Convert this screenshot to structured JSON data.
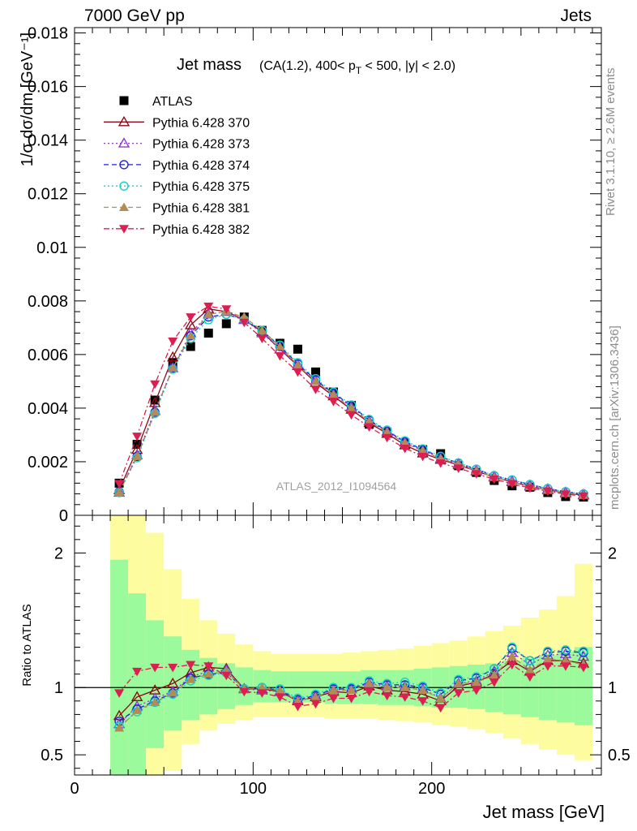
{
  "header": {
    "left": "7000 GeV pp",
    "right": "Jets"
  },
  "side_labels": {
    "rivet": "Rivet 3.1.10, ≥ 2.6M events",
    "mcplots": "mcplots.cern.ch [arXiv:1306.3436]"
  },
  "colors": {
    "ATLAS": "#000000",
    "p370": "#8b0a14",
    "p373": "#8c3ad6",
    "p374": "#2020d8",
    "p375": "#12d2c8",
    "p381": "#b48a55",
    "p382": "#dc1e50",
    "band_green": "#9bfa9b",
    "band_yellow": "#fdfda0",
    "watermark": "#a0a0a0"
  },
  "chart_data": [
    {
      "type": "scatter",
      "title_main": "Jet mass",
      "title_cuts": "(CA(1.2), 400< p_T < 500, |y| < 2.0)",
      "watermark": "ATLAS_2012_I1094564",
      "ylabel": "1/σ dσ/dm [GeV⁻¹]",
      "xlim": [
        0,
        295
      ],
      "ylim": [
        0,
        0.0182
      ],
      "ytick_values": [
        0,
        0.002,
        0.004,
        0.006,
        0.008,
        0.01,
        0.012,
        0.014,
        0.016,
        0.018
      ],
      "ytick_labels": [
        "0",
        "0.002",
        "0.004",
        "0.006",
        "0.008",
        "0.01",
        "0.012",
        "0.014",
        "0.016",
        "0.018"
      ],
      "legend_position": "top-left",
      "x": [
        25,
        35,
        45,
        55,
        65,
        75,
        85,
        95,
        105,
        115,
        125,
        135,
        145,
        155,
        165,
        175,
        185,
        195,
        205,
        215,
        225,
        235,
        245,
        255,
        265,
        275,
        285
      ],
      "series": [
        {
          "name": "ATLAS",
          "key": "ATLAS",
          "marker": "square",
          "line": "none",
          "values": [
            0.0012,
            0.00265,
            0.0043,
            0.0057,
            0.0063,
            0.0068,
            0.00715,
            0.0074,
            0.0069,
            0.00642,
            0.0062,
            0.00535,
            0.0046,
            0.0041,
            0.0034,
            0.0031,
            0.0027,
            0.00245,
            0.0023,
            0.00185,
            0.0016,
            0.0013,
            0.0011,
            0.00105,
            0.00085,
            0.0007,
            0.00068
          ]
        },
        {
          "name": "Pythia 6.428 370",
          "key": "p370",
          "marker": "tri-up-open",
          "line": "solid",
          "values": [
            0.00095,
            0.00245,
            0.0042,
            0.0059,
            0.0071,
            0.0077,
            0.0076,
            0.0073,
            0.00685,
            0.0062,
            0.00558,
            0.00495,
            0.00445,
            0.00395,
            0.00345,
            0.00305,
            0.00262,
            0.00232,
            0.00208,
            0.00188,
            0.00165,
            0.00142,
            0.00125,
            0.00108,
            0.00095,
            0.00083,
            0.00075
          ]
        },
        {
          "name": "Pythia 6.428 373",
          "key": "p373",
          "marker": "tri-up-open",
          "line": "dotted",
          "values": [
            0.00085,
            0.00225,
            0.0039,
            0.0055,
            0.0068,
            0.0075,
            0.0076,
            0.0073,
            0.0068,
            0.0062,
            0.00562,
            0.00502,
            0.00452,
            0.00405,
            0.00352,
            0.00312,
            0.00272,
            0.00242,
            0.00212,
            0.00192,
            0.00168,
            0.00145,
            0.00128,
            0.00112,
            0.00098,
            0.00086,
            0.00078
          ]
        },
        {
          "name": "Pythia 6.428 374",
          "key": "p374",
          "marker": "circle-open",
          "line": "dashed",
          "values": [
            0.00088,
            0.0022,
            0.00385,
            0.0055,
            0.0067,
            0.0074,
            0.0075,
            0.0073,
            0.0069,
            0.0063,
            0.00565,
            0.00505,
            0.00455,
            0.0041,
            0.00355,
            0.00315,
            0.00275,
            0.00245,
            0.00218,
            0.00195,
            0.00172,
            0.00148,
            0.00132,
            0.00115,
            0.001,
            0.00088,
            0.0008
          ]
        },
        {
          "name": "Pythia 6.428 375",
          "key": "p375",
          "marker": "circle-open",
          "line": "dotted",
          "values": [
            0.00085,
            0.00215,
            0.0038,
            0.00545,
            0.0066,
            0.0073,
            0.0075,
            0.0073,
            0.0069,
            0.00635,
            0.0057,
            0.0051,
            0.0046,
            0.00412,
            0.00358,
            0.00318,
            0.00278,
            0.00248,
            0.0022,
            0.00196,
            0.00172,
            0.00148,
            0.00132,
            0.00115,
            0.001,
            0.00088,
            0.0008
          ]
        },
        {
          "name": "Pythia 6.428 381",
          "key": "p381",
          "marker": "tri-up-filled",
          "line": "dashed",
          "values": [
            0.00085,
            0.0022,
            0.00385,
            0.0055,
            0.0067,
            0.0075,
            0.0076,
            0.0074,
            0.0069,
            0.0063,
            0.0056,
            0.005,
            0.0045,
            0.004,
            0.0035,
            0.0031,
            0.0027,
            0.0024,
            0.00212,
            0.0019,
            0.00166,
            0.00142,
            0.00125,
            0.00108,
            0.00094,
            0.00082,
            0.00075
          ]
        },
        {
          "name": "Pythia 6.428 382",
          "key": "p382",
          "marker": "tri-down-filled",
          "line": "dashdot",
          "values": [
            0.00118,
            0.00295,
            0.0049,
            0.0065,
            0.0074,
            0.0078,
            0.0077,
            0.0072,
            0.0066,
            0.00595,
            0.00535,
            0.0047,
            0.00425,
            0.00375,
            0.0033,
            0.0029,
            0.0025,
            0.0022,
            0.00195,
            0.00176,
            0.00155,
            0.00135,
            0.00118,
            0.00102,
            0.0009,
            0.00079,
            0.00072
          ]
        }
      ]
    },
    {
      "type": "line",
      "ylabel": "Ratio to ATLAS",
      "xlabel": "Jet mass [GeV]",
      "xlim": [
        0,
        295
      ],
      "ylim": [
        0.35,
        2.28
      ],
      "xtick_values": [
        0,
        100,
        200
      ],
      "xtick_labels": [
        "0",
        "100",
        "200"
      ],
      "ytick_values": [
        0.5,
        1,
        2
      ],
      "ytick_labels": [
        "0.5",
        "1",
        "2"
      ],
      "reference_line": 1,
      "x": [
        25,
        35,
        45,
        55,
        65,
        75,
        85,
        95,
        105,
        115,
        125,
        135,
        145,
        155,
        165,
        175,
        185,
        195,
        205,
        215,
        225,
        235,
        245,
        255,
        265,
        275,
        285
      ],
      "band_edges": [
        20,
        30,
        40,
        50,
        60,
        70,
        80,
        90,
        100,
        110,
        120,
        130,
        140,
        150,
        160,
        170,
        180,
        190,
        200,
        210,
        220,
        230,
        240,
        250,
        260,
        270,
        280,
        290
      ],
      "green_band": {
        "lo": [
          0.0,
          0.0,
          0.55,
          0.68,
          0.76,
          0.8,
          0.84,
          0.87,
          0.89,
          0.89,
          0.89,
          0.89,
          0.88,
          0.88,
          0.88,
          0.87,
          0.87,
          0.86,
          0.85,
          0.85,
          0.84,
          0.82,
          0.8,
          0.78,
          0.76,
          0.74,
          0.72
        ],
        "hi": [
          1.95,
          1.7,
          1.5,
          1.38,
          1.28,
          1.22,
          1.18,
          1.15,
          1.13,
          1.12,
          1.12,
          1.12,
          1.12,
          1.12,
          1.13,
          1.13,
          1.13,
          1.14,
          1.15,
          1.16,
          1.17,
          1.18,
          1.2,
          1.22,
          1.24,
          1.27,
          1.3
        ]
      },
      "yellow_band": {
        "lo": [
          0.0,
          0.0,
          0.0,
          0.38,
          0.58,
          0.68,
          0.73,
          0.76,
          0.78,
          0.78,
          0.78,
          0.78,
          0.77,
          0.77,
          0.77,
          0.76,
          0.75,
          0.74,
          0.72,
          0.71,
          0.69,
          0.66,
          0.62,
          0.58,
          0.54,
          0.5,
          0.46
        ],
        "hi": [
          2.4,
          2.4,
          2.15,
          1.88,
          1.66,
          1.5,
          1.4,
          1.32,
          1.27,
          1.25,
          1.25,
          1.25,
          1.25,
          1.26,
          1.27,
          1.28,
          1.29,
          1.31,
          1.33,
          1.35,
          1.38,
          1.42,
          1.46,
          1.52,
          1.58,
          1.68,
          1.92
        ]
      },
      "series": [
        {
          "name": "Pythia 6.428 370",
          "key": "p370",
          "marker": "tri-up-open",
          "line": "solid",
          "values": [
            0.79,
            0.93,
            0.98,
            1.03,
            1.11,
            1.15,
            1.14,
            0.99,
            0.99,
            0.97,
            0.9,
            0.93,
            0.97,
            0.96,
            1.01,
            0.98,
            0.97,
            0.95,
            0.9,
            1.01,
            1.04,
            1.1,
            1.2,
            1.12,
            1.2,
            1.2,
            1.18
          ]
        },
        {
          "name": "Pythia 6.428 373",
          "key": "p373",
          "marker": "tri-up-open",
          "line": "dotted",
          "values": [
            0.73,
            0.86,
            0.92,
            0.97,
            1.08,
            1.12,
            1.13,
            0.99,
            0.98,
            0.97,
            0.91,
            0.94,
            0.98,
            0.99,
            1.03,
            1.01,
            1.01,
            0.99,
            0.92,
            1.03,
            1.05,
            1.12,
            1.26,
            1.17,
            1.24,
            1.25,
            1.23
          ]
        },
        {
          "name": "Pythia 6.428 374",
          "key": "p374",
          "marker": "circle-open",
          "line": "dashed",
          "values": [
            0.75,
            0.84,
            0.9,
            0.96,
            1.07,
            1.1,
            1.11,
            0.99,
            1.0,
            0.98,
            0.91,
            0.94,
            0.99,
            0.99,
            1.04,
            1.02,
            1.02,
            1.0,
            0.95,
            1.05,
            1.07,
            1.14,
            1.29,
            1.2,
            1.26,
            1.27,
            1.26
          ]
        },
        {
          "name": "Pythia 6.428 375",
          "key": "p375",
          "marker": "circle-open",
          "line": "dotted",
          "values": [
            0.71,
            0.82,
            0.89,
            0.95,
            1.05,
            1.09,
            1.11,
            0.99,
            1.0,
            0.99,
            0.92,
            0.95,
            1.0,
            1.0,
            1.05,
            1.03,
            1.04,
            1.01,
            0.96,
            1.06,
            1.08,
            1.14,
            1.3,
            1.2,
            1.27,
            1.28,
            1.27
          ]
        },
        {
          "name": "Pythia 6.428 381",
          "key": "p381",
          "marker": "tri-up-filled",
          "line": "dashed",
          "values": [
            0.7,
            0.83,
            0.89,
            0.96,
            1.06,
            1.1,
            1.12,
            0.99,
            1.0,
            0.98,
            0.9,
            0.93,
            0.98,
            0.98,
            1.03,
            1.0,
            1.0,
            0.98,
            0.92,
            1.03,
            1.04,
            1.09,
            1.23,
            1.13,
            1.21,
            1.2,
            1.17
          ]
        },
        {
          "name": "Pythia 6.428 382",
          "key": "p382",
          "marker": "tri-down-filled",
          "line": "dashdot",
          "values": [
            0.96,
            1.12,
            1.15,
            1.15,
            1.17,
            1.16,
            1.09,
            0.97,
            0.96,
            0.93,
            0.86,
            0.88,
            0.92,
            0.92,
            0.97,
            0.94,
            0.93,
            0.9,
            0.85,
            0.96,
            0.98,
            1.04,
            1.17,
            1.08,
            1.16,
            1.16,
            1.15
          ]
        }
      ]
    }
  ]
}
